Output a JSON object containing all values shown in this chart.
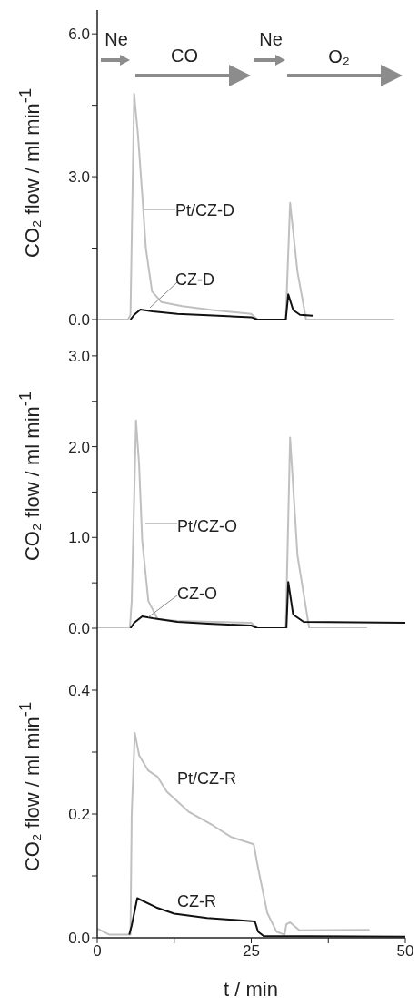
{
  "chart_data": [
    {
      "type": "line",
      "marker": "none",
      "xlim": [
        0,
        50
      ],
      "ylim": [
        0,
        6.5
      ],
      "yticks": [
        {
          "value": 0,
          "label": "0.0"
        },
        {
          "value": 1.5,
          "label": null
        },
        {
          "value": 3,
          "label": "3.0"
        },
        {
          "value": 4.5,
          "label": null
        },
        {
          "value": 6,
          "label": "6.0"
        }
      ],
      "tick_labels": "y",
      "ylabel": "CO₂ flow / ml min$^{-1}$",
      "annotations": [
        "Ne",
        "CO",
        "Ne",
        "O₂"
      ],
      "series": [
        {
          "name": "Pt/CZ-D",
          "color": "#c0c0c0",
          "x": [
            0,
            5.0,
            5.4,
            6.0,
            6.6,
            7.3,
            7.9,
            8.9,
            10.4,
            13.8,
            18.7,
            25,
            26,
            30.6,
            31.3,
            32.5,
            33.9,
            48.2
          ],
          "values": [
            0,
            0,
            0.1,
            4.74,
            3.9,
            2.64,
            1.49,
            0.59,
            0.37,
            0.28,
            0.2,
            0.12,
            0,
            0,
            2.45,
            1.0,
            0,
            0
          ]
        },
        {
          "name": "CZ-D",
          "color": "#111111",
          "x": [
            5.4,
            6.0,
            7.0,
            9,
            13,
            18,
            25,
            26,
            30.6,
            31.0,
            31.8,
            32.9,
            35
          ],
          "values": [
            0,
            0.1,
            0.21,
            0.17,
            0.12,
            0.09,
            0.05,
            0,
            0,
            0.53,
            0.2,
            0.1,
            0.08
          ]
        }
      ]
    },
    {
      "type": "line",
      "marker": "none",
      "xlim": [
        0,
        50
      ],
      "ylim": [
        0,
        3.4
      ],
      "yticks": [
        {
          "value": 0,
          "label": "0.0"
        },
        {
          "value": 0.5,
          "label": null
        },
        {
          "value": 1,
          "label": "1.0"
        },
        {
          "value": 1.5,
          "label": null
        },
        {
          "value": 2,
          "label": "2.0"
        },
        {
          "value": 2.5,
          "label": null
        },
        {
          "value": 3,
          "label": "3.0"
        }
      ],
      "tick_labels": "y",
      "ylabel": "CO₂ flow / ml min$^{-1}$",
      "series": [
        {
          "name": "Pt/CZ-O",
          "color": "#c0c0c0",
          "x": [
            0,
            5.3,
            5.6,
            6.3,
            6.8,
            7.3,
            8.3,
            9.8,
            13,
            25,
            26,
            30.6,
            31.3,
            32.5,
            34.4,
            43.8
          ],
          "values": [
            0,
            0,
            0.3,
            2.29,
            1.8,
            0.97,
            0.3,
            0.1,
            0.08,
            0.06,
            0,
            0,
            2.1,
            0.8,
            0,
            0
          ]
        },
        {
          "name": "CZ-O",
          "color": "#111111",
          "x": [
            5.4,
            6.0,
            7.3,
            9,
            13,
            18,
            25,
            26,
            30.7,
            31.0,
            31.8,
            33.5,
            50
          ],
          "values": [
            0,
            0.06,
            0.13,
            0.11,
            0.07,
            0.05,
            0.03,
            0,
            0,
            0.51,
            0.15,
            0.07,
            0.06
          ]
        }
      ]
    },
    {
      "type": "line",
      "marker": "none",
      "xlim": [
        0,
        50
      ],
      "xticks": [
        0,
        {
          "value": 12.5,
          "label": null
        },
        25,
        {
          "value": 37.5,
          "label": null
        },
        50
      ],
      "ylim": [
        0,
        0.5
      ],
      "yticks": [
        {
          "value": 0,
          "label": "0.0"
        },
        {
          "value": 0.1,
          "label": null
        },
        {
          "value": 0.2,
          "label": "0.2"
        },
        {
          "value": 0.3,
          "label": null
        },
        {
          "value": 0.4,
          "label": "0.4"
        }
      ],
      "xlabel": "t / min",
      "ylabel": "CO₂ flow / ml min$^{-1}$",
      "series": [
        {
          "name": "Pt/CZ-R",
          "color": "#c0c0c0",
          "x": [
            0,
            2,
            5.4,
            5.6,
            6.1,
            6.8,
            8.3,
            9.8,
            11.3,
            14.8,
            18.7,
            21.7,
            25.4,
            26.1,
            27.6,
            29.1,
            30.4,
            30.7,
            31.3,
            32.8,
            44.2
          ],
          "values": [
            0.015,
            0.005,
            0.005,
            0.2,
            0.331,
            0.295,
            0.27,
            0.26,
            0.236,
            0.204,
            0.182,
            0.163,
            0.151,
            0.113,
            0.04,
            0.01,
            0.005,
            0.022,
            0.025,
            0.012,
            0.013
          ]
        },
        {
          "name": "CZ-R",
          "color": "#111111",
          "x": [
            5.2,
            5.6,
            6.5,
            9.6,
            12.5,
            17.8,
            25.1,
            25.6,
            26.1,
            27,
            50
          ],
          "values": [
            0.005,
            0.02,
            0.064,
            0.049,
            0.039,
            0.032,
            0.027,
            0.026,
            0.01,
            0.003,
            0.002
          ]
        }
      ]
    }
  ]
}
